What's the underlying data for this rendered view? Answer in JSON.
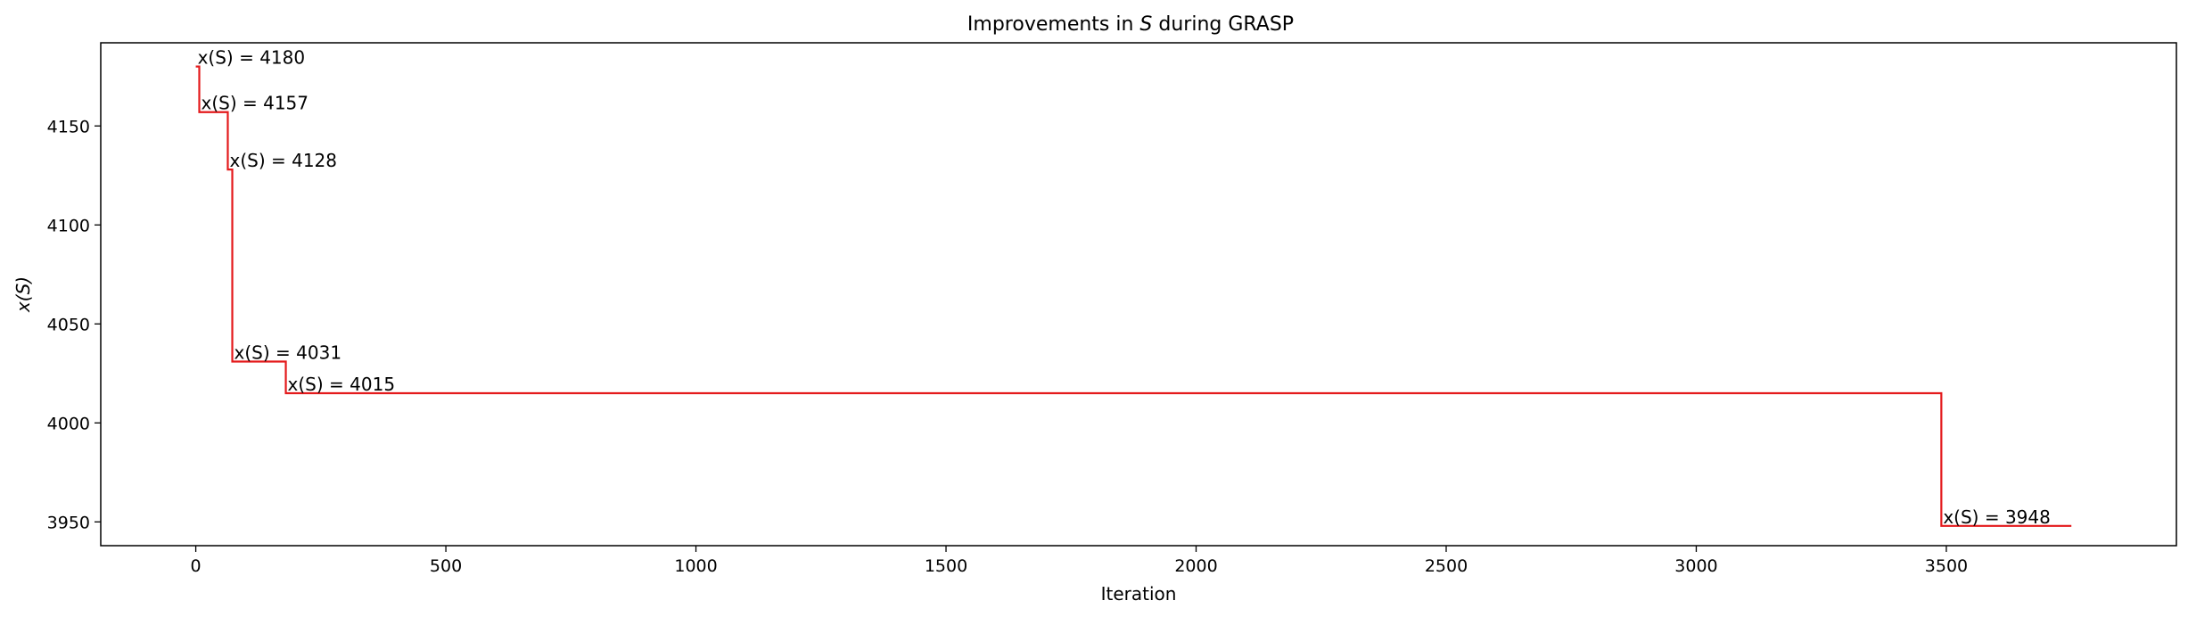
{
  "chart_data": {
    "type": "line",
    "drawstyle": "steps-post",
    "title_prefix": "Improvements in ",
    "title_var": "S",
    "title_suffix": " during GRASP",
    "xlabel": "Iteration",
    "ylabel": "x(S)",
    "xlim": [
      -190,
      3960
    ],
    "ylim": [
      3938,
      4192
    ],
    "xticks": [
      0,
      500,
      1000,
      1500,
      2000,
      2500,
      3000,
      3500
    ],
    "yticks": [
      3950,
      4000,
      4050,
      4100,
      4150
    ],
    "grid": false,
    "legend": "none",
    "line_color": "#e41a1c",
    "series": [
      {
        "x": [
          0,
          7,
          64,
          73,
          180,
          3490,
          3750
        ],
        "y": [
          4180,
          4157,
          4128,
          4031,
          4015,
          3948,
          3948
        ]
      }
    ],
    "annotations": [
      {
        "x": 0,
        "y": 4180,
        "text": "x(S) = 4180"
      },
      {
        "x": 7,
        "y": 4157,
        "text": "x(S) = 4157"
      },
      {
        "x": 64,
        "y": 4128,
        "text": "x(S) = 4128"
      },
      {
        "x": 73,
        "y": 4031,
        "text": "x(S) = 4031"
      },
      {
        "x": 180,
        "y": 4015,
        "text": "x(S) = 4015"
      },
      {
        "x": 3490,
        "y": 3948,
        "text": "x(S) = 3948"
      }
    ]
  }
}
